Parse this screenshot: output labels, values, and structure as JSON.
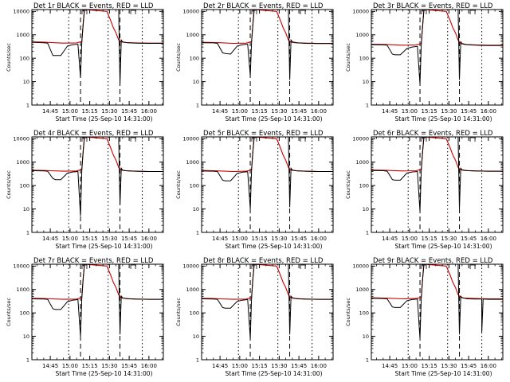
{
  "figure": {
    "background": "#ffffff",
    "grid": "off"
  },
  "colors": {
    "events": "#000000",
    "lld": "#cc0000",
    "frame": "#000000"
  },
  "shared": {
    "xlabel": "Start Time (25-Sep-10 14:31:00)",
    "ylabel": "Counts/sec",
    "xticks": [
      "14:45",
      "15:00",
      "15:15",
      "15:30",
      "15:45",
      "16:00"
    ],
    "yticks": [
      "1",
      "10",
      "100",
      "1000",
      "10000"
    ]
  },
  "chart_data": [
    {
      "type": "line",
      "title": "Det 1r BLACK = Events, RED = LLD",
      "xlabel": "Start Time (25-Sep-10 14:31:00)",
      "ylabel": "Counts/sec",
      "y_scale": "log",
      "ylim": [
        1,
        12000
      ],
      "xlim": [
        "14:31",
        "16:11"
      ],
      "series": [
        {
          "name": "Events",
          "color": "#000000",
          "x": [
            "14:31",
            "14:40",
            "14:43",
            "14:47",
            "14:49",
            "14:53",
            "14:58",
            "15:02",
            "15:06",
            "15:08",
            "15:09",
            "15:10",
            "15:11",
            "15:37",
            "15:38",
            "15:39",
            "15:40",
            "15:44",
            "15:50",
            "16:00",
            "16:11"
          ],
          "y": [
            480,
            460,
            440,
            130,
            130,
            130,
            330,
            380,
            400,
            15,
            500,
            3000,
            12000,
            12000,
            8,
            600,
            500,
            460,
            440,
            430,
            430
          ]
        },
        {
          "name": "LLD",
          "color": "#cc0000",
          "x": [
            "14:31",
            "14:40",
            "14:45",
            "14:55",
            "15:05",
            "15:09",
            "15:10",
            "15:11",
            "15:28",
            "15:31",
            "15:33",
            "15:35",
            "15:37",
            "15:39",
            "15:42",
            "15:50",
            "16:00",
            "16:11"
          ],
          "y": [
            500,
            490,
            470,
            440,
            450,
            520,
            3000,
            12000,
            10000,
            4000,
            2000,
            1200,
            600,
            500,
            470,
            450,
            440,
            440
          ]
        }
      ]
    },
    {
      "type": "line",
      "title": "Det 2r BLACK = Events, RED = LLD",
      "xlabel": "Start Time (25-Sep-10 14:31:00)",
      "ylabel": "Counts/sec",
      "y_scale": "log",
      "ylim": [
        1,
        12000
      ],
      "xlim": [
        "14:31",
        "16:11"
      ],
      "series": [
        {
          "name": "Events",
          "color": "#000000",
          "x": [
            "14:31",
            "14:40",
            "14:43",
            "14:47",
            "14:49",
            "14:53",
            "14:58",
            "15:02",
            "15:06",
            "15:08",
            "15:09",
            "15:10",
            "15:11",
            "15:37",
            "15:38",
            "15:39",
            "15:40",
            "15:44",
            "15:50",
            "16:00",
            "16:11"
          ],
          "y": [
            460,
            450,
            430,
            170,
            160,
            150,
            330,
            380,
            400,
            18,
            500,
            3000,
            12000,
            12000,
            12,
            600,
            500,
            450,
            430,
            420,
            420
          ]
        },
        {
          "name": "LLD",
          "color": "#cc0000",
          "x": [
            "14:31",
            "14:40",
            "14:45",
            "14:55",
            "15:05",
            "15:09",
            "15:10",
            "15:11",
            "15:28",
            "15:31",
            "15:33",
            "15:35",
            "15:37",
            "15:39",
            "15:42",
            "15:50",
            "16:00",
            "16:11"
          ],
          "y": [
            480,
            470,
            460,
            430,
            440,
            510,
            3000,
            12000,
            10000,
            4000,
            2000,
            1200,
            600,
            480,
            460,
            440,
            430,
            430
          ]
        }
      ]
    },
    {
      "type": "line",
      "title": "Det 3r BLACK = Events, RED = LLD",
      "xlabel": "Start Time (25-Sep-10 14:31:00)",
      "ylabel": "Counts/sec",
      "y_scale": "log",
      "ylim": [
        1,
        12000
      ],
      "xlim": [
        "14:31",
        "16:11"
      ],
      "series": [
        {
          "name": "Events",
          "color": "#000000",
          "x": [
            "14:31",
            "14:40",
            "14:43",
            "14:47",
            "14:49",
            "14:53",
            "14:58",
            "15:02",
            "15:06",
            "15:08",
            "15:09",
            "15:10",
            "15:11",
            "15:37",
            "15:38",
            "15:39",
            "15:40",
            "15:44",
            "15:50",
            "16:00",
            "16:11"
          ],
          "y": [
            380,
            370,
            360,
            150,
            140,
            140,
            260,
            300,
            320,
            8,
            400,
            2500,
            12000,
            12000,
            12,
            500,
            420,
            380,
            360,
            350,
            350
          ]
        },
        {
          "name": "LLD",
          "color": "#cc0000",
          "x": [
            "14:31",
            "14:40",
            "14:45",
            "14:55",
            "15:05",
            "15:09",
            "15:10",
            "15:11",
            "15:28",
            "15:31",
            "15:33",
            "15:35",
            "15:37",
            "15:39",
            "15:42",
            "15:50",
            "16:00",
            "16:11"
          ],
          "y": [
            400,
            390,
            380,
            360,
            370,
            420,
            2500,
            12000,
            10000,
            4000,
            2000,
            1200,
            600,
            420,
            390,
            370,
            360,
            360
          ]
        }
      ]
    },
    {
      "type": "line",
      "title": "Det 4r BLACK = Events, RED = LLD",
      "xlabel": "Start Time (25-Sep-10 14:31:00)",
      "ylabel": "Counts/sec",
      "y_scale": "log",
      "ylim": [
        1,
        12000
      ],
      "xlim": [
        "14:31",
        "16:11"
      ],
      "series": [
        {
          "name": "Events",
          "color": "#000000",
          "x": [
            "14:31",
            "14:40",
            "14:43",
            "14:47",
            "14:49",
            "14:53",
            "14:58",
            "15:02",
            "15:06",
            "15:08",
            "15:09",
            "15:10",
            "15:11",
            "15:37",
            "15:38",
            "15:39",
            "15:40",
            "15:44",
            "15:50",
            "16:00",
            "16:11"
          ],
          "y": [
            430,
            420,
            410,
            200,
            180,
            180,
            340,
            380,
            400,
            5,
            500,
            3000,
            12000,
            12000,
            15,
            550,
            450,
            420,
            410,
            400,
            400
          ]
        },
        {
          "name": "LLD",
          "color": "#cc0000",
          "x": [
            "14:31",
            "14:40",
            "14:45",
            "14:55",
            "15:05",
            "15:09",
            "15:10",
            "15:11",
            "15:28",
            "15:31",
            "15:33",
            "15:35",
            "15:37",
            "15:39",
            "15:42",
            "15:50",
            "16:00",
            "16:11"
          ],
          "y": [
            450,
            440,
            430,
            410,
            420,
            480,
            3000,
            12000,
            10000,
            4000,
            2000,
            1200,
            600,
            460,
            430,
            410,
            400,
            400
          ]
        }
      ]
    },
    {
      "type": "line",
      "title": "Det 5r BLACK = Events, RED = LLD",
      "xlabel": "Start Time (25-Sep-10 14:31:00)",
      "ylabel": "Counts/sec",
      "y_scale": "log",
      "ylim": [
        1,
        12000
      ],
      "xlim": [
        "14:31",
        "16:11"
      ],
      "series": [
        {
          "name": "Events",
          "color": "#000000",
          "x": [
            "14:31",
            "14:40",
            "14:43",
            "14:47",
            "14:49",
            "14:53",
            "14:58",
            "15:02",
            "15:06",
            "15:08",
            "15:09",
            "15:10",
            "15:11",
            "15:37",
            "15:38",
            "15:39",
            "15:40",
            "15:44",
            "15:50",
            "16:00",
            "16:11"
          ],
          "y": [
            420,
            410,
            400,
            170,
            160,
            160,
            330,
            370,
            390,
            10,
            500,
            3000,
            12000,
            12000,
            12,
            550,
            460,
            420,
            410,
            400,
            400
          ]
        },
        {
          "name": "LLD",
          "color": "#cc0000",
          "x": [
            "14:31",
            "14:40",
            "14:45",
            "14:55",
            "15:05",
            "15:09",
            "15:10",
            "15:11",
            "15:28",
            "15:31",
            "15:33",
            "15:35",
            "15:37",
            "15:39",
            "15:42",
            "15:50",
            "16:00",
            "16:11"
          ],
          "y": [
            440,
            430,
            420,
            400,
            410,
            470,
            3000,
            12000,
            10000,
            4000,
            2000,
            1200,
            600,
            460,
            430,
            410,
            400,
            400
          ]
        }
      ]
    },
    {
      "type": "line",
      "title": "Det 6r BLACK = Events, RED = LLD",
      "xlabel": "Start Time (25-Sep-10 14:31:00)",
      "ylabel": "Counts/sec",
      "y_scale": "log",
      "ylim": [
        1,
        12000
      ],
      "xlim": [
        "14:31",
        "16:11"
      ],
      "series": [
        {
          "name": "Events",
          "color": "#000000",
          "x": [
            "14:31",
            "14:40",
            "14:43",
            "14:47",
            "14:49",
            "14:53",
            "14:58",
            "15:02",
            "15:06",
            "15:08",
            "15:09",
            "15:10",
            "15:11",
            "15:37",
            "15:38",
            "15:39",
            "15:40",
            "15:44",
            "15:50",
            "16:00",
            "16:11"
          ],
          "y": [
            440,
            430,
            410,
            180,
            170,
            170,
            340,
            380,
            400,
            8,
            500,
            3000,
            12000,
            12000,
            10,
            550,
            470,
            430,
            420,
            410,
            410
          ]
        },
        {
          "name": "LLD",
          "color": "#cc0000",
          "x": [
            "14:31",
            "14:40",
            "14:45",
            "14:55",
            "15:05",
            "15:09",
            "15:10",
            "15:11",
            "15:28",
            "15:31",
            "15:33",
            "15:35",
            "15:37",
            "15:39",
            "15:42",
            "15:50",
            "16:00",
            "16:11"
          ],
          "y": [
            460,
            450,
            440,
            420,
            430,
            490,
            3000,
            12000,
            10000,
            4000,
            2000,
            1200,
            600,
            470,
            440,
            420,
            410,
            410
          ]
        }
      ]
    },
    {
      "type": "line",
      "title": "Det 7r BLACK = Events, RED = LLD",
      "xlabel": "Start Time (25-Sep-10 14:31:00)",
      "ylabel": "Counts/sec",
      "y_scale": "log",
      "ylim": [
        1,
        12000
      ],
      "xlim": [
        "14:31",
        "16:11"
      ],
      "series": [
        {
          "name": "Events",
          "color": "#000000",
          "x": [
            "14:31",
            "14:40",
            "14:43",
            "14:47",
            "14:49",
            "14:53",
            "14:58",
            "15:02",
            "15:06",
            "15:08",
            "15:09",
            "15:10",
            "15:11",
            "15:37",
            "15:38",
            "15:39",
            "15:40",
            "15:44",
            "15:50",
            "16:00",
            "16:11"
          ],
          "y": [
            400,
            390,
            380,
            150,
            140,
            140,
            300,
            350,
            370,
            10,
            450,
            3000,
            12000,
            12000,
            12,
            520,
            440,
            400,
            390,
            380,
            380
          ]
        },
        {
          "name": "LLD",
          "color": "#cc0000",
          "x": [
            "14:31",
            "14:40",
            "14:45",
            "14:55",
            "15:05",
            "15:09",
            "15:10",
            "15:11",
            "15:28",
            "15:31",
            "15:33",
            "15:35",
            "15:37",
            "15:39",
            "15:42",
            "15:50",
            "16:00",
            "16:11"
          ],
          "y": [
            420,
            410,
            400,
            380,
            390,
            450,
            3000,
            12000,
            10000,
            4000,
            2000,
            1200,
            600,
            440,
            410,
            390,
            380,
            380
          ]
        }
      ]
    },
    {
      "type": "line",
      "title": "Det 8r BLACK = Events, RED = LLD",
      "xlabel": "Start Time (25-Sep-10 14:31:00)",
      "ylabel": "Counts/sec",
      "y_scale": "log",
      "ylim": [
        1,
        12000
      ],
      "xlim": [
        "14:31",
        "16:11"
      ],
      "series": [
        {
          "name": "Events",
          "color": "#000000",
          "x": [
            "14:31",
            "14:40",
            "14:43",
            "14:47",
            "14:49",
            "14:53",
            "14:58",
            "15:02",
            "15:06",
            "15:08",
            "15:09",
            "15:10",
            "15:11",
            "15:37",
            "15:38",
            "15:39",
            "15:40",
            "15:44",
            "15:50",
            "16:00",
            "16:11"
          ],
          "y": [
            400,
            390,
            380,
            170,
            160,
            160,
            310,
            350,
            370,
            8,
            450,
            3000,
            12000,
            12000,
            12,
            520,
            440,
            400,
            390,
            380,
            380
          ]
        },
        {
          "name": "LLD",
          "color": "#cc0000",
          "x": [
            "14:31",
            "14:40",
            "14:45",
            "14:55",
            "15:05",
            "15:09",
            "15:10",
            "15:11",
            "15:28",
            "15:31",
            "15:33",
            "15:35",
            "15:37",
            "15:39",
            "15:42",
            "15:50",
            "16:00",
            "16:11"
          ],
          "y": [
            420,
            410,
            400,
            380,
            390,
            450,
            3000,
            12000,
            10000,
            4000,
            2000,
            1200,
            600,
            440,
            410,
            390,
            380,
            380
          ]
        }
      ]
    },
    {
      "type": "line",
      "title": "Det 9r BLACK = Events, RED = LLD",
      "xlabel": "Start Time (25-Sep-10 14:31:00)",
      "ylabel": "Counts/sec",
      "y_scale": "log",
      "ylim": [
        1,
        12000
      ],
      "xlim": [
        "14:31",
        "16:11"
      ],
      "series": [
        {
          "name": "Events",
          "color": "#000000",
          "x": [
            "14:31",
            "14:40",
            "14:43",
            "14:47",
            "14:49",
            "14:53",
            "14:58",
            "15:02",
            "15:06",
            "15:08",
            "15:09",
            "15:10",
            "15:11",
            "15:37",
            "15:38",
            "15:39",
            "15:40",
            "15:44",
            "15:50",
            "15:55",
            "15:55",
            "15:56",
            "16:00",
            "16:11"
          ],
          "y": [
            420,
            410,
            400,
            180,
            170,
            170,
            330,
            370,
            390,
            8,
            450,
            3000,
            12000,
            12000,
            12,
            520,
            440,
            400,
            390,
            390,
            15,
            390,
            380,
            380
          ]
        },
        {
          "name": "LLD",
          "color": "#cc0000",
          "x": [
            "14:31",
            "14:40",
            "14:45",
            "14:55",
            "15:05",
            "15:09",
            "15:10",
            "15:11",
            "15:28",
            "15:31",
            "15:33",
            "15:35",
            "15:37",
            "15:39",
            "15:42",
            "15:50",
            "16:00",
            "16:11"
          ],
          "y": [
            440,
            430,
            420,
            400,
            410,
            470,
            3000,
            12000,
            10000,
            4000,
            2000,
            1200,
            600,
            460,
            430,
            410,
            400,
            400
          ]
        }
      ]
    }
  ]
}
